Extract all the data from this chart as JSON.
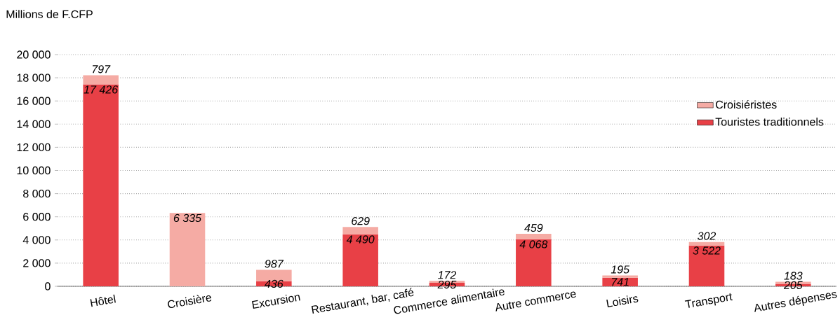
{
  "chart_data": {
    "type": "bar",
    "stacked": true,
    "ylabel": "Millions de F.CFP",
    "categories": [
      "Hôtel",
      "Croisière",
      "Excursion",
      "Restaurant, bar, café",
      "Commerce alimentaire",
      "Autre commerce",
      "Loisirs",
      "Transport",
      "Autres dépenses"
    ],
    "series": [
      {
        "name": "Touristes traditionnels",
        "color": "#e84046",
        "values": [
          17426,
          null,
          436,
          4490,
          295,
          4068,
          741,
          3522,
          205
        ],
        "value_labels": [
          "17 426",
          null,
          "436",
          "4 490",
          "295",
          "4 068",
          "741",
          "3 522",
          "205"
        ]
      },
      {
        "name": "Croisiéristes",
        "color": "#f5aba4",
        "values": [
          797,
          6335,
          987,
          629,
          172,
          459,
          195,
          302,
          183
        ],
        "value_labels": [
          "797",
          "6 335",
          "987",
          "629",
          "172",
          "459",
          "195",
          "302",
          "183"
        ]
      }
    ],
    "ylim": [
      0,
      20000
    ],
    "yticks": [
      {
        "value": 0,
        "label": "0"
      },
      {
        "value": 2000,
        "label": "2 000"
      },
      {
        "value": 4000,
        "label": "4 000"
      },
      {
        "value": 6000,
        "label": "6 000"
      },
      {
        "value": 8000,
        "label": "8 000"
      },
      {
        "value": 10000,
        "label": "10 000"
      },
      {
        "value": 12000,
        "label": "12 000"
      },
      {
        "value": 14000,
        "label": "14 000"
      },
      {
        "value": 16000,
        "label": "16 000"
      },
      {
        "value": 18000,
        "label": "18 000"
      },
      {
        "value": 20000,
        "label": "20 000"
      }
    ],
    "grid": "y",
    "legend": "top right"
  }
}
